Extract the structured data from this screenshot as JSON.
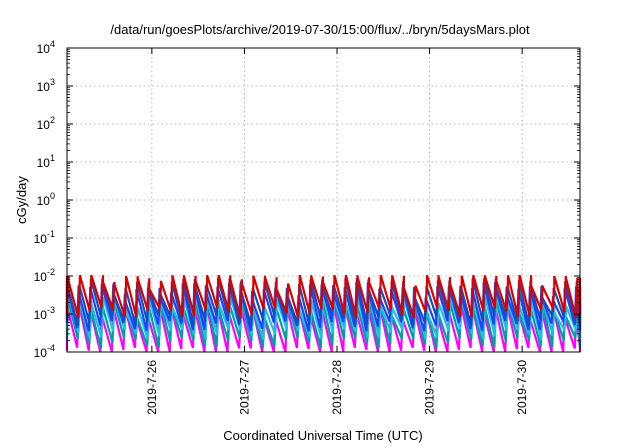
{
  "chart_data": {
    "type": "line",
    "title": "/data/run/goesPlots/archive/2019-07-30/15:00/flux/../bryn/5daysMars.plot",
    "xlabel": "Coordinated Universal Time (UTC)",
    "ylabel": "cGy/day",
    "yscale": "log",
    "ylim": [
      0.0001,
      10000
    ],
    "y_tick_labels": [
      {
        "value": 0.0001,
        "mantissa": "10",
        "exp": "-4"
      },
      {
        "value": 0.001,
        "mantissa": "10",
        "exp": "-3"
      },
      {
        "value": 0.01,
        "mantissa": "10",
        "exp": "-2"
      },
      {
        "value": 0.1,
        "mantissa": "10",
        "exp": "-1"
      },
      {
        "value": 1,
        "mantissa": "10",
        "exp": "0"
      },
      {
        "value": 10,
        "mantissa": "10",
        "exp": "1"
      },
      {
        "value": 100,
        "mantissa": "10",
        "exp": "2"
      },
      {
        "value": 1000,
        "mantissa": "10",
        "exp": "3"
      },
      {
        "value": 10000,
        "mantissa": "10",
        "exp": "4"
      }
    ],
    "xlim": [
      "2019-07-25T02:00",
      "2019-07-30T15:00"
    ],
    "x_tick_labels": [
      "2019-7-26",
      "2019-7-27",
      "2019-7-28",
      "2019-7-29",
      "2019-7-30"
    ],
    "x_tick_dates": [
      "2019-07-26T00:00",
      "2019-07-27T00:00",
      "2019-07-28T00:00",
      "2019-07-29T00:00",
      "2019-07-30T00:00"
    ],
    "grid": true,
    "legend": "none",
    "sawtooth_period_hours": 3,
    "series": [
      {
        "color": "#ff00ff",
        "peak": 0.0014,
        "trough": 0.0001
      },
      {
        "color": "#00a0a0",
        "peak": 0.0018,
        "trough": 0.00018
      },
      {
        "color": "#20c0e0",
        "peak": 0.0022,
        "trough": 0.0003
      },
      {
        "color": "#2040ff",
        "peak": 0.0045,
        "trough": 0.0005
      },
      {
        "color": "#1050c0",
        "peak": 0.006,
        "trough": 0.0007
      },
      {
        "color": "#dd0000",
        "peak": 0.009,
        "trough": 0.0011
      }
    ]
  }
}
